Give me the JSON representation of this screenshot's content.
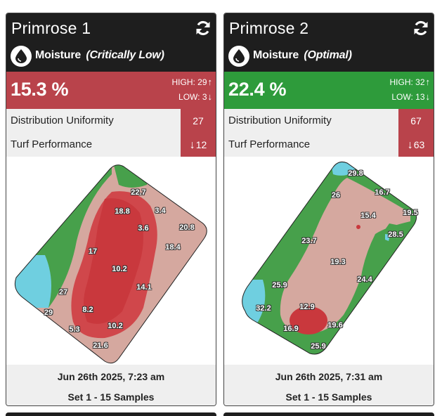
{
  "cards": [
    {
      "title": "Primrose 1",
      "metric_name": "Moisture",
      "status": "(Critically Low)",
      "value": "15.3 %",
      "high_label": "HIGH: 29",
      "low_label": "LOW: 3",
      "distribution_label": "Distribution Uniformity",
      "distribution_value": "27",
      "turf_label": "Turf Performance",
      "turf_value": "12",
      "map_labels": [
        "22.7",
        "18.8",
        "3.4",
        "3.6",
        "20.8",
        "17",
        "18.4",
        "10.2",
        "14.1",
        "27",
        "29",
        "8.2",
        "5.3",
        "10.2",
        "21.6"
      ],
      "date": "Jun 26th 2025, 7:23 am",
      "set": "Set 1 - 15 Samples",
      "status_color": "#b9434b"
    },
    {
      "title": "Primrose 2",
      "metric_name": "Moisture",
      "status": "(Optimal)",
      "value": "22.4 %",
      "high_label": "HIGH: 32",
      "low_label": "LOW: 13",
      "distribution_label": "Distribution Uniformity",
      "distribution_value": "67",
      "turf_label": "Turf Performance",
      "turf_value": "63",
      "map_labels": [
        "29.8",
        "26",
        "16.7",
        "15.4",
        "19.5",
        "28.5",
        "23.7",
        "19.3",
        "24.4",
        "25.9",
        "32.2",
        "12.9",
        "16.9",
        "19.6",
        "25.9"
      ],
      "date": "Jun 26th 2025, 7:31 am",
      "set": "Set 1 - 15 Samples",
      "status_color": "#2e9b3b"
    }
  ],
  "icons": {
    "refresh": "refresh-icon",
    "drop": "water-drop-icon",
    "up": "arrow-up-icon",
    "down": "arrow-down-icon"
  }
}
